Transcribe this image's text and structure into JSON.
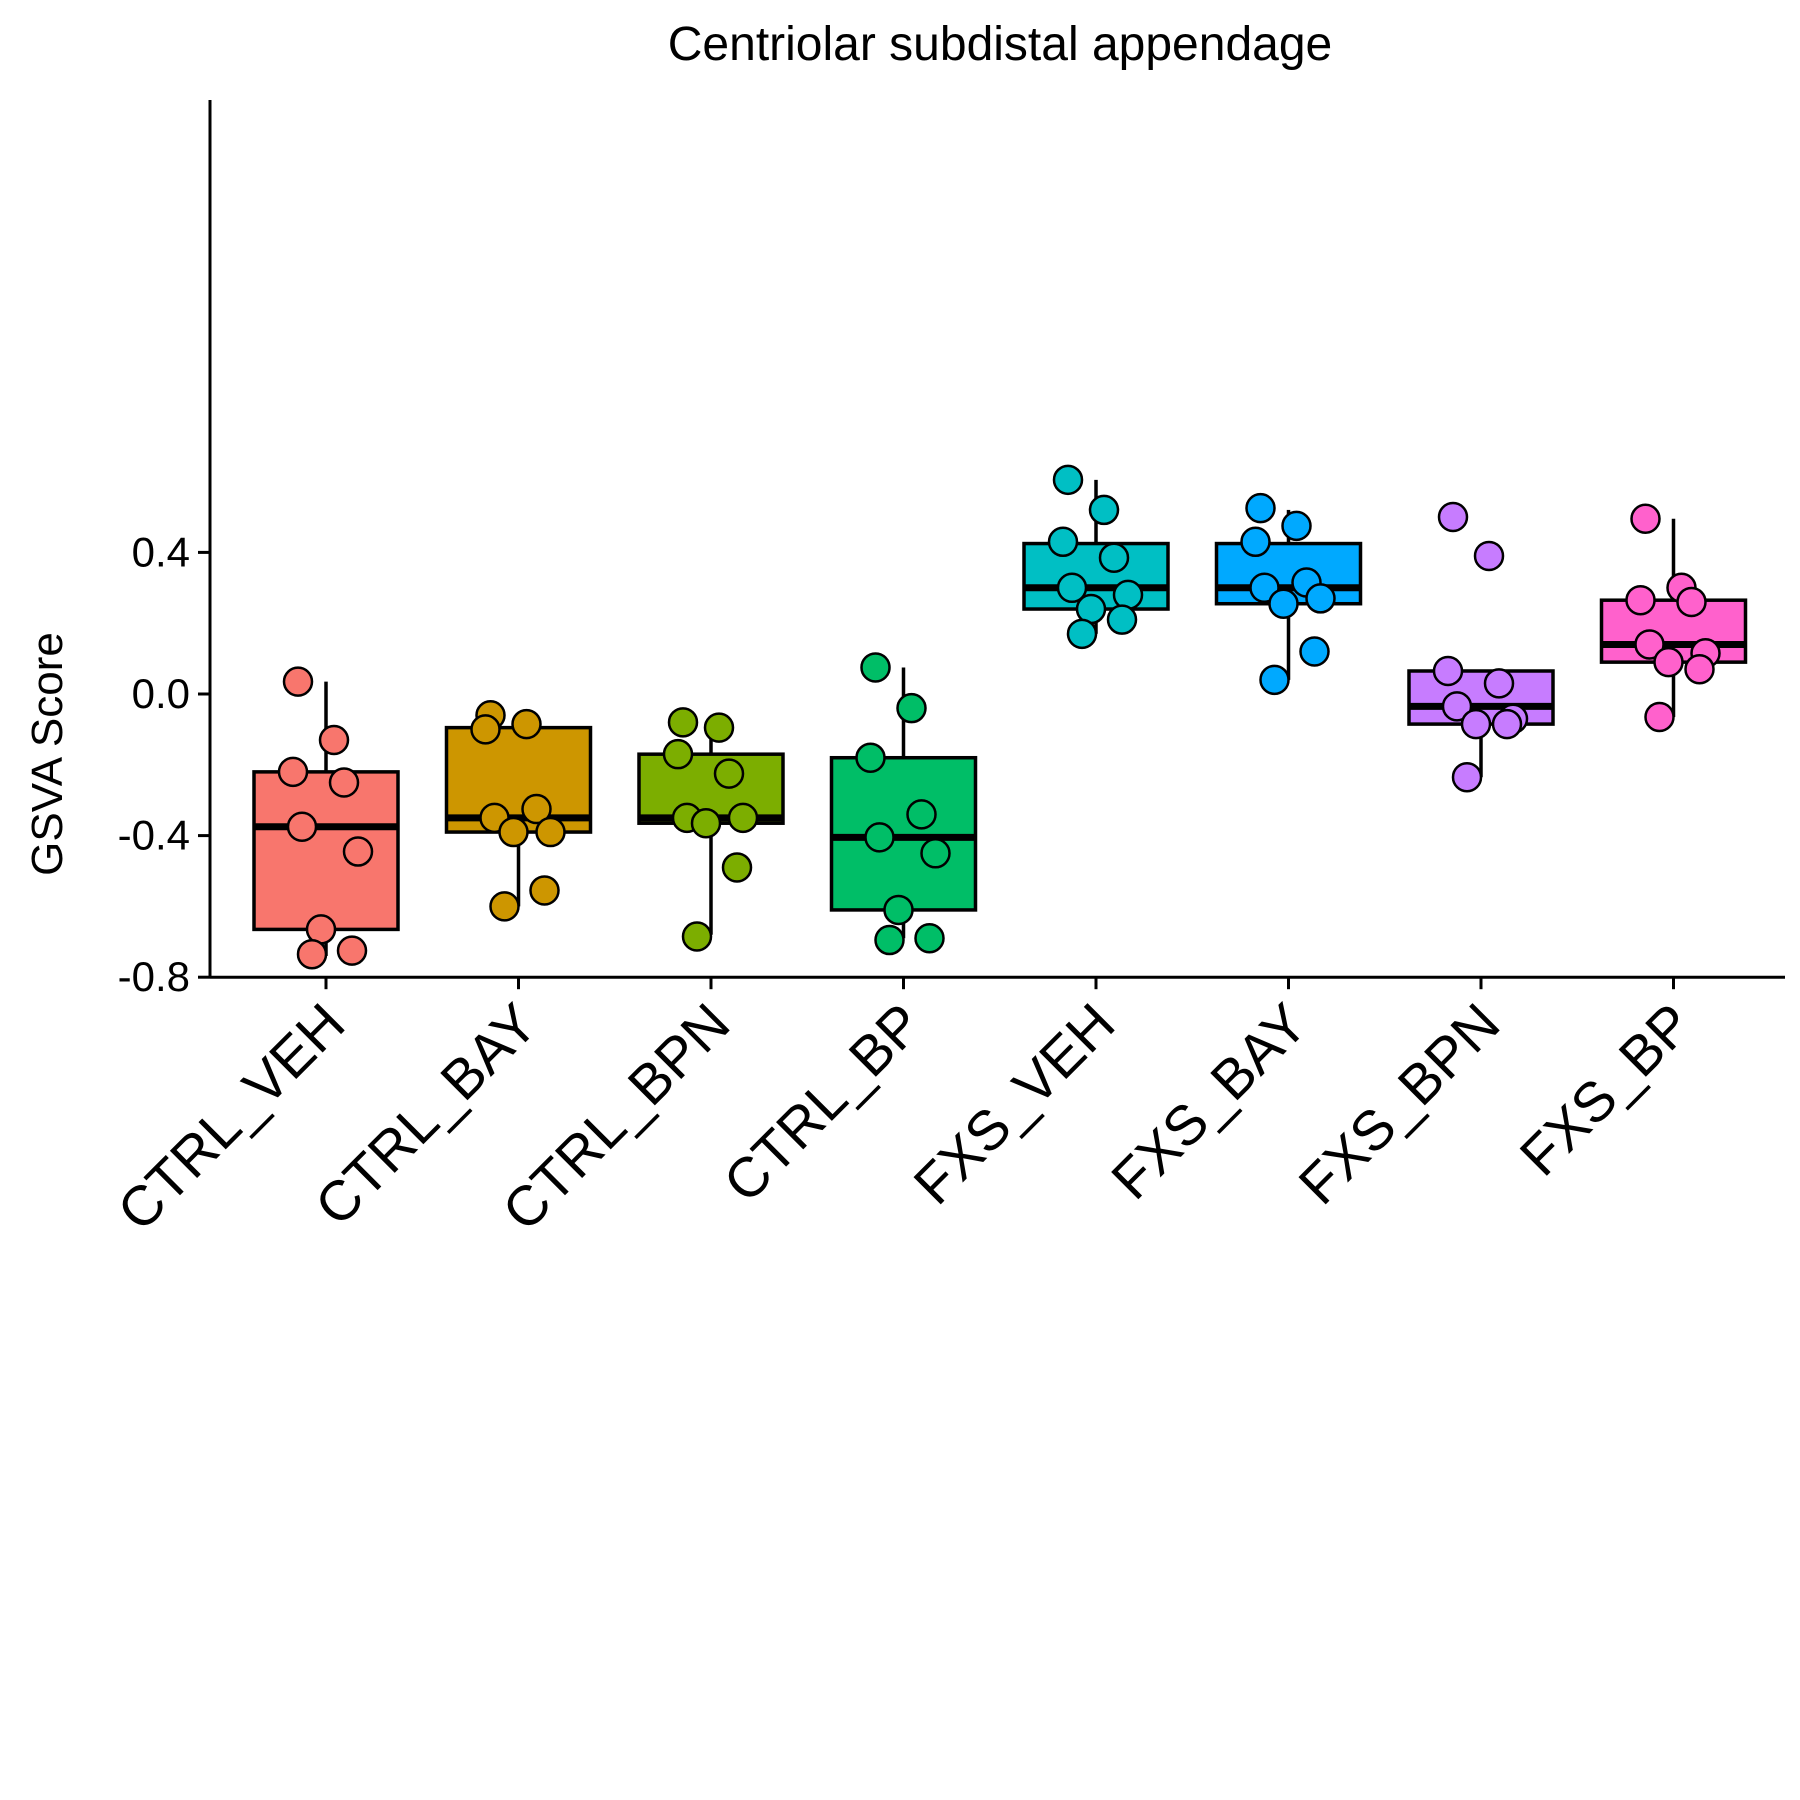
{
  "chart_data": {
    "type": "box",
    "title": "Centriolar subdistal appendage",
    "xlabel": "",
    "ylabel": "GSVA Score",
    "ylim": [
      -0.8,
      0.65
    ],
    "yticks": [
      -0.8,
      -0.4,
      0.0,
      0.4
    ],
    "ytick_labels": [
      "-0.8",
      "-0.4",
      "0.0",
      "0.4"
    ],
    "grid": false,
    "legend": "none",
    "groups": [
      {
        "name": "CTRL_VEH",
        "color": "#F8766D",
        "box": {
          "whisker_low": -0.74,
          "q1": -0.665,
          "median": -0.375,
          "q3": -0.22,
          "whisker_high": 0.035
        },
        "points": [
          0.035,
          -0.13,
          -0.22,
          -0.25,
          -0.375,
          -0.445,
          -0.665,
          -0.725,
          -0.735
        ]
      },
      {
        "name": "CTRL_BAY",
        "color": "#CD9600",
        "box": {
          "whisker_low": -0.6,
          "q1": -0.39,
          "median": -0.35,
          "q3": -0.095,
          "whisker_high": -0.06
        },
        "points": [
          -0.06,
          -0.085,
          -0.1,
          -0.325,
          -0.35,
          -0.39,
          -0.39,
          -0.555,
          -0.6
        ]
      },
      {
        "name": "CTRL_BPN",
        "color": "#7CAE00",
        "box": {
          "whisker_low": -0.68,
          "q1": -0.365,
          "median": -0.35,
          "q3": -0.17,
          "whisker_high": -0.08
        },
        "points": [
          -0.08,
          -0.095,
          -0.17,
          -0.225,
          -0.35,
          -0.35,
          -0.365,
          -0.49,
          -0.685
        ]
      },
      {
        "name": "CTRL_BP",
        "color": "#00BE67",
        "box": {
          "whisker_low": -0.69,
          "q1": -0.61,
          "median": -0.405,
          "q3": -0.18,
          "whisker_high": 0.075
        },
        "points": [
          0.075,
          -0.04,
          -0.18,
          -0.34,
          -0.405,
          -0.45,
          -0.61,
          -0.69,
          -0.695
        ]
      },
      {
        "name": "FXS_VEH",
        "color": "#00BFC4",
        "box": {
          "whisker_low": 0.17,
          "q1": 0.24,
          "median": 0.3,
          "q3": 0.425,
          "whisker_high": 0.605
        },
        "points": [
          0.605,
          0.52,
          0.43,
          0.385,
          0.3,
          0.28,
          0.24,
          0.21,
          0.17
        ]
      },
      {
        "name": "FXS_BAY",
        "color": "#00A9FF",
        "box": {
          "whisker_low": 0.04,
          "q1": 0.255,
          "median": 0.3,
          "q3": 0.425,
          "whisker_high": 0.52
        },
        "points": [
          0.525,
          0.475,
          0.43,
          0.315,
          0.3,
          0.27,
          0.255,
          0.12,
          0.04
        ]
      },
      {
        "name": "FXS_BPN",
        "color": "#C77CFF",
        "box": {
          "whisker_low": -0.235,
          "q1": -0.085,
          "median": -0.035,
          "q3": 0.065,
          "whisker_high": 0.065
        },
        "points": [
          0.5,
          0.39,
          0.065,
          0.03,
          -0.035,
          -0.07,
          -0.085,
          -0.085,
          -0.235
        ]
      },
      {
        "name": "FXS_BP",
        "color": "#FF61CC",
        "box": {
          "whisker_low": -0.065,
          "q1": 0.09,
          "median": 0.14,
          "q3": 0.265,
          "whisker_high": 0.495
        },
        "points": [
          0.495,
          0.3,
          0.265,
          0.26,
          0.14,
          0.115,
          0.09,
          0.07,
          -0.065
        ]
      }
    ]
  }
}
